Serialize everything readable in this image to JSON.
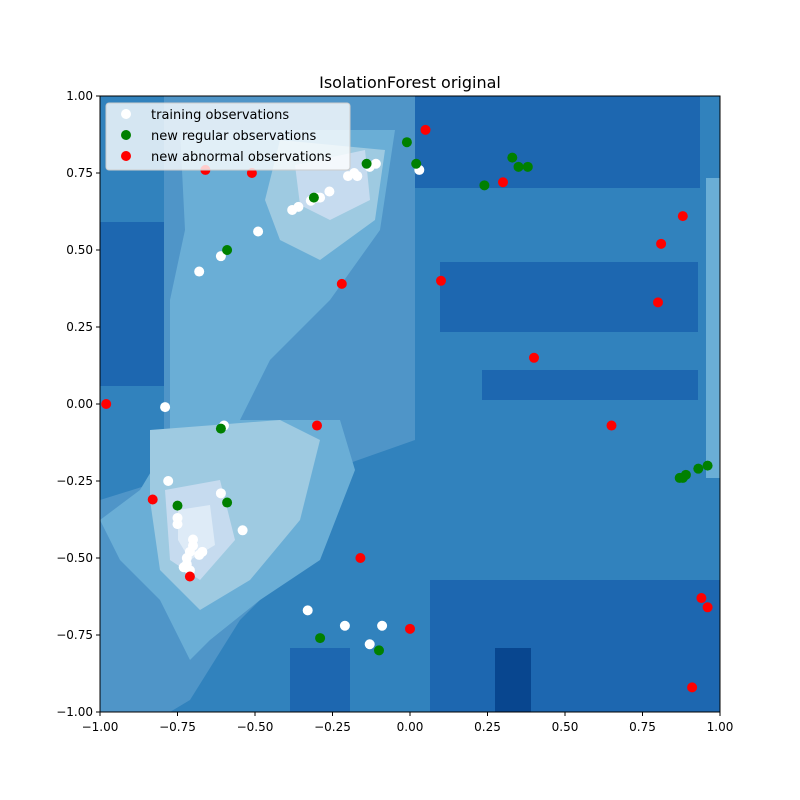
{
  "chart_data": {
    "type": "scatter",
    "title": "IsolationForest original",
    "xlabel": "",
    "ylabel": "",
    "xlim": [
      -1.0,
      1.0
    ],
    "ylim": [
      -1.0,
      1.0
    ],
    "xticks": [
      "−1.00",
      "−0.75",
      "−0.50",
      "−0.25",
      "0.00",
      "0.25",
      "0.50",
      "0.75",
      "1.00"
    ],
    "yticks": [
      "−1.00",
      "−0.75",
      "−0.50",
      "−0.25",
      "0.00",
      "0.25",
      "0.50",
      "0.75",
      "1.00"
    ],
    "xtick_values": [
      -1.0,
      -0.75,
      -0.5,
      -0.25,
      0.0,
      0.25,
      0.5,
      0.75,
      1.0
    ],
    "ytick_values": [
      -1.0,
      -0.75,
      -0.5,
      -0.25,
      0.0,
      0.25,
      0.5,
      0.75,
      1.0
    ],
    "legend_position": "upper-left",
    "background": "filled decision-function contour (Blues colormap)",
    "series": [
      {
        "name": "training observations",
        "color": "#ffffff",
        "points": [
          [
            -0.11,
            0.78
          ],
          [
            -0.13,
            0.77
          ],
          [
            -0.18,
            0.75
          ],
          [
            -0.17,
            0.74
          ],
          [
            -0.2,
            0.74
          ],
          [
            -0.26,
            0.69
          ],
          [
            -0.29,
            0.67
          ],
          [
            -0.3,
            0.67
          ],
          [
            -0.32,
            0.66
          ],
          [
            -0.36,
            0.64
          ],
          [
            -0.38,
            0.63
          ],
          [
            0.03,
            0.76
          ],
          [
            -0.49,
            0.56
          ],
          [
            -0.61,
            0.48
          ],
          [
            -0.68,
            0.43
          ],
          [
            -0.79,
            -0.01
          ],
          [
            -0.6,
            -0.07
          ],
          [
            -0.78,
            -0.25
          ],
          [
            -0.61,
            -0.29
          ],
          [
            -0.75,
            -0.37
          ],
          [
            -0.75,
            -0.39
          ],
          [
            -0.54,
            -0.41
          ],
          [
            -0.7,
            -0.44
          ],
          [
            -0.7,
            -0.46
          ],
          [
            -0.71,
            -0.48
          ],
          [
            -0.67,
            -0.48
          ],
          [
            -0.68,
            -0.49
          ],
          [
            -0.72,
            -0.5
          ],
          [
            -0.72,
            -0.52
          ],
          [
            -0.73,
            -0.53
          ],
          [
            -0.71,
            -0.54
          ],
          [
            -0.33,
            -0.67
          ],
          [
            -0.21,
            -0.72
          ],
          [
            -0.09,
            -0.72
          ],
          [
            -0.13,
            -0.78
          ]
        ]
      },
      {
        "name": "new regular observations",
        "color": "#008000",
        "points": [
          [
            -0.14,
            0.78
          ],
          [
            -0.01,
            0.85
          ],
          [
            0.02,
            0.78
          ],
          [
            0.24,
            0.71
          ],
          [
            0.33,
            0.8
          ],
          [
            0.35,
            0.77
          ],
          [
            0.38,
            0.77
          ],
          [
            -0.31,
            0.67
          ],
          [
            -0.59,
            0.5
          ],
          [
            -0.61,
            -0.08
          ],
          [
            -0.75,
            -0.33
          ],
          [
            -0.59,
            -0.32
          ],
          [
            -0.29,
            -0.76
          ],
          [
            -0.1,
            -0.8
          ],
          [
            0.87,
            -0.24
          ],
          [
            0.88,
            -0.24
          ],
          [
            0.89,
            -0.23
          ],
          [
            0.93,
            -0.21
          ],
          [
            0.96,
            -0.2
          ]
        ]
      },
      {
        "name": "new abnormal observations",
        "color": "#ff0000",
        "points": [
          [
            0.05,
            0.89
          ],
          [
            -0.66,
            0.76
          ],
          [
            -0.51,
            0.75
          ],
          [
            0.3,
            0.72
          ],
          [
            0.88,
            0.61
          ],
          [
            0.81,
            0.52
          ],
          [
            0.1,
            0.4
          ],
          [
            -0.22,
            0.39
          ],
          [
            0.8,
            0.33
          ],
          [
            0.4,
            0.15
          ],
          [
            -0.98,
            0.0
          ],
          [
            -0.3,
            -0.07
          ],
          [
            0.65,
            -0.07
          ],
          [
            -0.83,
            -0.31
          ],
          [
            -0.16,
            -0.5
          ],
          [
            -0.71,
            -0.56
          ],
          [
            0.94,
            -0.63
          ],
          [
            0.96,
            -0.66
          ],
          [
            0.0,
            -0.73
          ],
          [
            0.91,
            -0.92
          ]
        ]
      }
    ]
  }
}
